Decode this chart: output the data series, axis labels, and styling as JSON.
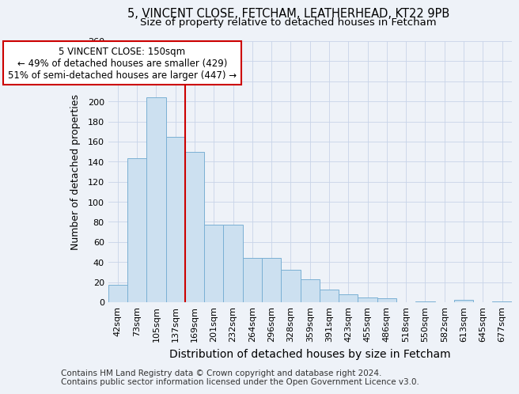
{
  "title_line1": "5, VINCENT CLOSE, FETCHAM, LEATHERHEAD, KT22 9PB",
  "title_line2": "Size of property relative to detached houses in Fetcham",
  "xlabel": "Distribution of detached houses by size in Fetcham",
  "ylabel": "Number of detached properties",
  "categories": [
    "42sqm",
    "73sqm",
    "105sqm",
    "137sqm",
    "169sqm",
    "201sqm",
    "232sqm",
    "264sqm",
    "296sqm",
    "328sqm",
    "359sqm",
    "391sqm",
    "423sqm",
    "455sqm",
    "486sqm",
    "518sqm",
    "550sqm",
    "582sqm",
    "613sqm",
    "645sqm",
    "677sqm"
  ],
  "values": [
    17,
    143,
    204,
    165,
    150,
    77,
    77,
    44,
    44,
    32,
    23,
    13,
    8,
    5,
    4,
    0,
    1,
    0,
    2,
    0,
    1
  ],
  "bar_color": "#cce0f0",
  "bar_edge_color": "#7ab0d4",
  "vline_x_index": 3,
  "vline_color": "#cc0000",
  "annotation_text": "5 VINCENT CLOSE: 150sqm\n← 49% of detached houses are smaller (429)\n51% of semi-detached houses are larger (447) →",
  "annotation_box_facecolor": "white",
  "annotation_box_edgecolor": "#cc0000",
  "ylim": [
    0,
    260
  ],
  "yticks": [
    0,
    20,
    40,
    60,
    80,
    100,
    120,
    140,
    160,
    180,
    200,
    220,
    240,
    260
  ],
  "background_color": "#eef2f8",
  "grid_color": "#c8d4e8",
  "title_fontsize": 10.5,
  "subtitle_fontsize": 9.5,
  "ylabel_fontsize": 9,
  "xlabel_fontsize": 10,
  "tick_fontsize": 8,
  "annot_fontsize": 8.5,
  "footer_fontsize": 7.5,
  "footer_line1": "Contains HM Land Registry data © Crown copyright and database right 2024.",
  "footer_line2": "Contains public sector information licensed under the Open Government Licence v3.0."
}
